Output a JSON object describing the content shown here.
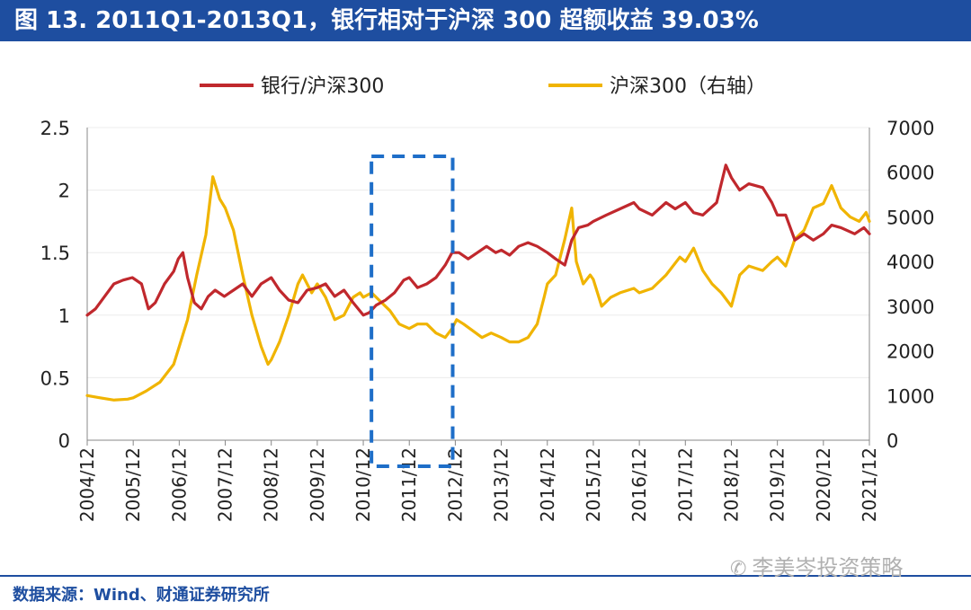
{
  "title": "图 13. 2011Q1-2013Q1，银行相对于沪深 300 超额收益 39.03%",
  "source": "数据来源：Wind、财通证券研究所",
  "watermark": "李美岑投资策略",
  "colors": {
    "bank_ratio": "#c0282d",
    "csi300": "#f0b400",
    "highlight": "#1e6ec8",
    "brand": "#1e4ea0"
  },
  "chart_data": {
    "type": "line",
    "title": "2011Q1-2013Q1，银行相对于沪深 300 超额收益 39.03%",
    "x_labels": [
      "2004/12",
      "2005/12",
      "2006/12",
      "2007/12",
      "2008/12",
      "2009/12",
      "2010/12",
      "2011/12",
      "2012/12",
      "2013/12",
      "2014/12",
      "2015/12",
      "2016/12",
      "2017/12",
      "2018/12",
      "2019/12",
      "2020/12",
      "2021/12"
    ],
    "y_left": {
      "ticks": [
        "0",
        "0.5",
        "1",
        "1.5",
        "2",
        "2.5"
      ],
      "range": [
        0,
        2.5
      ]
    },
    "y_right": {
      "ticks": [
        "0",
        "1000",
        "2000",
        "3000",
        "4000",
        "5000",
        "6000",
        "7000"
      ],
      "range": [
        0,
        7000
      ]
    },
    "highlight_period": {
      "label": "2011Q1-2013Q1",
      "start": 2011.0,
      "end": 2013.0
    },
    "series": [
      {
        "name": "银行/沪深300",
        "axis": "left",
        "points": [
          [
            2004.92,
            1.0
          ],
          [
            2005.1,
            1.05
          ],
          [
            2005.3,
            1.15
          ],
          [
            2005.5,
            1.25
          ],
          [
            2005.7,
            1.28
          ],
          [
            2005.9,
            1.3
          ],
          [
            2006.1,
            1.25
          ],
          [
            2006.25,
            1.05
          ],
          [
            2006.4,
            1.1
          ],
          [
            2006.6,
            1.25
          ],
          [
            2006.8,
            1.35
          ],
          [
            2006.9,
            1.45
          ],
          [
            2007.0,
            1.5
          ],
          [
            2007.1,
            1.3
          ],
          [
            2007.25,
            1.1
          ],
          [
            2007.4,
            1.05
          ],
          [
            2007.55,
            1.15
          ],
          [
            2007.7,
            1.2
          ],
          [
            2007.9,
            1.15
          ],
          [
            2008.1,
            1.2
          ],
          [
            2008.3,
            1.25
          ],
          [
            2008.5,
            1.15
          ],
          [
            2008.7,
            1.25
          ],
          [
            2008.92,
            1.3
          ],
          [
            2009.1,
            1.2
          ],
          [
            2009.3,
            1.12
          ],
          [
            2009.5,
            1.1
          ],
          [
            2009.7,
            1.2
          ],
          [
            2009.92,
            1.22
          ],
          [
            2010.1,
            1.25
          ],
          [
            2010.3,
            1.15
          ],
          [
            2010.5,
            1.2
          ],
          [
            2010.7,
            1.1
          ],
          [
            2010.92,
            1.0
          ],
          [
            2011.05,
            1.02
          ],
          [
            2011.2,
            1.08
          ],
          [
            2011.4,
            1.12
          ],
          [
            2011.6,
            1.18
          ],
          [
            2011.8,
            1.28
          ],
          [
            2011.92,
            1.3
          ],
          [
            2012.1,
            1.22
          ],
          [
            2012.3,
            1.25
          ],
          [
            2012.5,
            1.3
          ],
          [
            2012.7,
            1.4
          ],
          [
            2012.85,
            1.5
          ],
          [
            2013.0,
            1.5
          ],
          [
            2013.2,
            1.45
          ],
          [
            2013.4,
            1.5
          ],
          [
            2013.6,
            1.55
          ],
          [
            2013.8,
            1.5
          ],
          [
            2013.92,
            1.52
          ],
          [
            2014.1,
            1.48
          ],
          [
            2014.3,
            1.55
          ],
          [
            2014.5,
            1.58
          ],
          [
            2014.7,
            1.55
          ],
          [
            2014.92,
            1.5
          ],
          [
            2015.1,
            1.45
          ],
          [
            2015.3,
            1.4
          ],
          [
            2015.45,
            1.6
          ],
          [
            2015.6,
            1.7
          ],
          [
            2015.8,
            1.72
          ],
          [
            2015.92,
            1.75
          ],
          [
            2016.2,
            1.8
          ],
          [
            2016.5,
            1.85
          ],
          [
            2016.8,
            1.9
          ],
          [
            2016.92,
            1.85
          ],
          [
            2017.2,
            1.8
          ],
          [
            2017.5,
            1.9
          ],
          [
            2017.7,
            1.85
          ],
          [
            2017.92,
            1.9
          ],
          [
            2018.1,
            1.82
          ],
          [
            2018.3,
            1.8
          ],
          [
            2018.6,
            1.9
          ],
          [
            2018.8,
            2.2
          ],
          [
            2018.92,
            2.1
          ],
          [
            2019.1,
            2.0
          ],
          [
            2019.3,
            2.05
          ],
          [
            2019.6,
            2.02
          ],
          [
            2019.8,
            1.9
          ],
          [
            2019.92,
            1.8
          ],
          [
            2020.1,
            1.8
          ],
          [
            2020.3,
            1.6
          ],
          [
            2020.5,
            1.65
          ],
          [
            2020.7,
            1.6
          ],
          [
            2020.92,
            1.65
          ],
          [
            2021.1,
            1.72
          ],
          [
            2021.3,
            1.7
          ],
          [
            2021.6,
            1.65
          ],
          [
            2021.8,
            1.7
          ],
          [
            2021.92,
            1.65
          ]
        ]
      },
      {
        "name": "沪深300（右轴）",
        "axis": "right",
        "points": [
          [
            2004.92,
            1000
          ],
          [
            2005.2,
            950
          ],
          [
            2005.5,
            900
          ],
          [
            2005.8,
            920
          ],
          [
            2005.92,
            950
          ],
          [
            2006.2,
            1100
          ],
          [
            2006.5,
            1300
          ],
          [
            2006.8,
            1700
          ],
          [
            2006.92,
            2100
          ],
          [
            2007.1,
            2700
          ],
          [
            2007.3,
            3700
          ],
          [
            2007.5,
            4600
          ],
          [
            2007.65,
            5900
          ],
          [
            2007.8,
            5400
          ],
          [
            2007.92,
            5200
          ],
          [
            2008.1,
            4700
          ],
          [
            2008.3,
            3700
          ],
          [
            2008.5,
            2800
          ],
          [
            2008.7,
            2100
          ],
          [
            2008.85,
            1700
          ],
          [
            2008.92,
            1800
          ],
          [
            2009.1,
            2200
          ],
          [
            2009.3,
            2800
          ],
          [
            2009.5,
            3500
          ],
          [
            2009.6,
            3700
          ],
          [
            2009.8,
            3300
          ],
          [
            2009.92,
            3500
          ],
          [
            2010.1,
            3200
          ],
          [
            2010.3,
            2700
          ],
          [
            2010.5,
            2800
          ],
          [
            2010.7,
            3200
          ],
          [
            2010.85,
            3300
          ],
          [
            2010.92,
            3200
          ],
          [
            2011.1,
            3300
          ],
          [
            2011.3,
            3100
          ],
          [
            2011.5,
            2900
          ],
          [
            2011.7,
            2600
          ],
          [
            2011.92,
            2500
          ],
          [
            2012.1,
            2600
          ],
          [
            2012.3,
            2600
          ],
          [
            2012.5,
            2400
          ],
          [
            2012.7,
            2300
          ],
          [
            2012.85,
            2500
          ],
          [
            2012.95,
            2700
          ],
          [
            2013.1,
            2600
          ],
          [
            2013.3,
            2450
          ],
          [
            2013.5,
            2300
          ],
          [
            2013.7,
            2400
          ],
          [
            2013.92,
            2300
          ],
          [
            2014.1,
            2200
          ],
          [
            2014.3,
            2200
          ],
          [
            2014.5,
            2300
          ],
          [
            2014.7,
            2600
          ],
          [
            2014.85,
            3200
          ],
          [
            2014.92,
            3500
          ],
          [
            2015.1,
            3700
          ],
          [
            2015.3,
            4500
          ],
          [
            2015.45,
            5200
          ],
          [
            2015.55,
            4000
          ],
          [
            2015.7,
            3500
          ],
          [
            2015.85,
            3700
          ],
          [
            2015.92,
            3600
          ],
          [
            2016.1,
            3000
          ],
          [
            2016.3,
            3200
          ],
          [
            2016.5,
            3300
          ],
          [
            2016.8,
            3400
          ],
          [
            2016.92,
            3300
          ],
          [
            2017.2,
            3400
          ],
          [
            2017.5,
            3700
          ],
          [
            2017.8,
            4100
          ],
          [
            2017.92,
            4000
          ],
          [
            2018.1,
            4300
          ],
          [
            2018.3,
            3800
          ],
          [
            2018.5,
            3500
          ],
          [
            2018.7,
            3300
          ],
          [
            2018.92,
            3000
          ],
          [
            2019.1,
            3700
          ],
          [
            2019.3,
            3900
          ],
          [
            2019.6,
            3800
          ],
          [
            2019.8,
            4000
          ],
          [
            2019.92,
            4100
          ],
          [
            2020.1,
            3900
          ],
          [
            2020.3,
            4500
          ],
          [
            2020.5,
            4700
          ],
          [
            2020.7,
            5200
          ],
          [
            2020.92,
            5300
          ],
          [
            2021.1,
            5700
          ],
          [
            2021.3,
            5200
          ],
          [
            2021.5,
            5000
          ],
          [
            2021.7,
            4900
          ],
          [
            2021.85,
            5100
          ],
          [
            2021.92,
            4900
          ]
        ]
      }
    ]
  }
}
